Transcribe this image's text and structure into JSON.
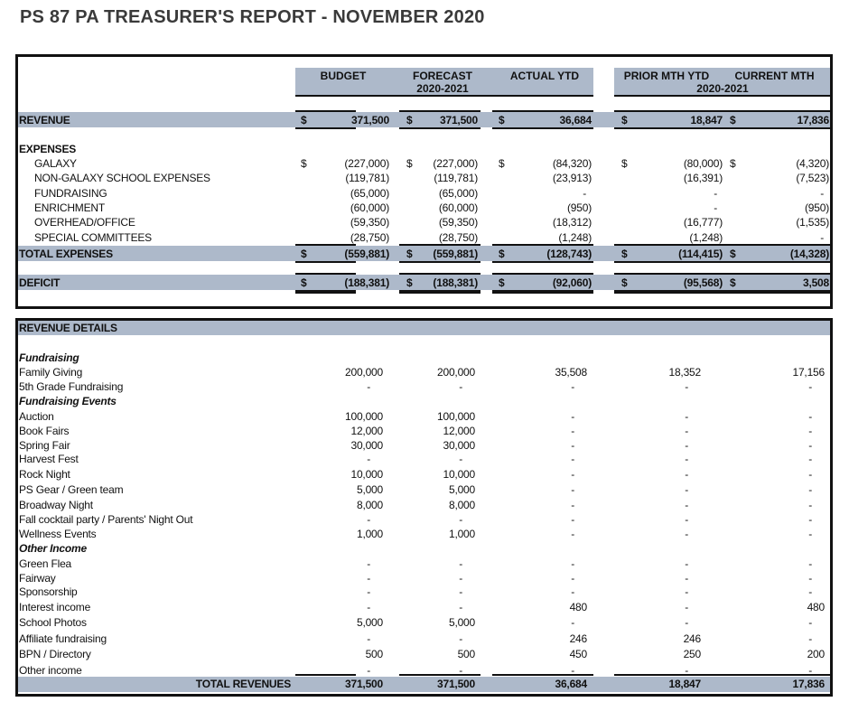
{
  "title": "PS 87 PA TREASURER'S REPORT - NOVEMBER 2020",
  "summary": {
    "headers": [
      {
        "line1": "BUDGET",
        "line2": ""
      },
      {
        "line1": "FORECAST",
        "line2": "2020-2021"
      },
      {
        "line1": "ACTUAL YTD",
        "line2": ""
      },
      {
        "line1": "PRIOR MTH YTD",
        "line2": ""
      },
      {
        "line1": "CURRENT MTH",
        "line2": ""
      }
    ],
    "right_group_subheader": "2020-2021",
    "currency": "$",
    "revenue": {
      "label": "REVENUE",
      "values": [
        "371,500",
        "371,500",
        "36,684",
        "18,847",
        "17,836"
      ]
    },
    "expenses_heading": "EXPENSES",
    "expenses": [
      {
        "label": "GALAXY",
        "values": [
          "(227,000)",
          "(227,000)",
          "(84,320)",
          "(80,000)",
          "(4,320)"
        ],
        "dollar": true
      },
      {
        "label": "NON-GALAXY SCHOOL EXPENSES",
        "values": [
          "(119,781)",
          "(119,781)",
          "(23,913)",
          "(16,391)",
          "(7,523)"
        ]
      },
      {
        "label": "FUNDRAISING",
        "values": [
          "(65,000)",
          "(65,000)",
          "-",
          "-",
          "-"
        ]
      },
      {
        "label": "ENRICHMENT",
        "values": [
          "(60,000)",
          "(60,000)",
          "(950)",
          "-",
          "(950)"
        ]
      },
      {
        "label": "OVERHEAD/OFFICE",
        "values": [
          "(59,350)",
          "(59,350)",
          "(18,312)",
          "(16,777)",
          "(1,535)"
        ]
      },
      {
        "label": "SPECIAL COMMITTEES",
        "values": [
          "(28,750)",
          "(28,750)",
          "(1,248)",
          "(1,248)",
          "-"
        ]
      }
    ],
    "total_expenses": {
      "label": "TOTAL EXPENSES",
      "values": [
        "(559,881)",
        "(559,881)",
        "(128,743)",
        "(114,415)",
        "(14,328)"
      ]
    },
    "deficit": {
      "label": "DEFICIT",
      "values": [
        "(188,381)",
        "(188,381)",
        "(92,060)",
        "(95,568)",
        "3,508"
      ]
    }
  },
  "details": {
    "heading": "REVENUE DETAILS",
    "rows": [
      {
        "label": "Fundraising",
        "section": true
      },
      {
        "label": "Family Giving",
        "values": [
          "200,000",
          "200,000",
          "35,508",
          "18,352",
          "17,156"
        ]
      },
      {
        "label": "5th Grade Fundraising",
        "values": [
          "-",
          "-",
          "-",
          "-",
          "-"
        ]
      },
      {
        "label": "Fundraising Events",
        "section": true
      },
      {
        "label": "Auction",
        "values": [
          "100,000",
          "100,000",
          "-",
          "-",
          "-"
        ]
      },
      {
        "label": "Book Fairs",
        "values": [
          "12,000",
          "12,000",
          "-",
          "-",
          "-"
        ]
      },
      {
        "label": "Spring Fair",
        "values": [
          "30,000",
          "30,000",
          "-",
          "-",
          "-"
        ]
      },
      {
        "label": "Harvest Fest",
        "values": [
          "-",
          "-",
          "-",
          "-",
          "-"
        ]
      },
      {
        "label": "Rock Night",
        "values": [
          "10,000",
          "10,000",
          "-",
          "-",
          "-"
        ]
      },
      {
        "label": "PS Gear / Green team",
        "values": [
          "5,000",
          "5,000",
          "-",
          "-",
          "-"
        ]
      },
      {
        "label": "Broadway Night",
        "values": [
          "8,000",
          "8,000",
          "-",
          "-",
          "-"
        ]
      },
      {
        "label": "Fall cocktail party / Parents' Night Out",
        "values": [
          "-",
          "-",
          "-",
          "-",
          "-"
        ]
      },
      {
        "label": "Wellness Events",
        "values": [
          "1,000",
          "1,000",
          "-",
          "-",
          "-"
        ]
      },
      {
        "label": "Other Income",
        "section": true
      },
      {
        "label": "Green Flea",
        "values": [
          "-",
          "-",
          "-",
          "-",
          "-"
        ]
      },
      {
        "label": "Fairway",
        "values": [
          "-",
          "-",
          "-",
          "-",
          "-"
        ]
      },
      {
        "label": "Sponsorship",
        "values": [
          "-",
          "-",
          "-",
          "-",
          "-"
        ]
      },
      {
        "label": "Interest income",
        "values": [
          "-",
          "-",
          "480",
          "-",
          "480"
        ]
      },
      {
        "label": "School Photos",
        "values": [
          "5,000",
          "5,000",
          "-",
          "-",
          "-"
        ]
      },
      {
        "label": "Affiliate fundraising",
        "values": [
          "-",
          "-",
          "246",
          "246",
          "-"
        ]
      },
      {
        "label": "BPN / Directory",
        "values": [
          "500",
          "500",
          "450",
          "250",
          "200"
        ]
      },
      {
        "label": "Other income",
        "values": [
          "-",
          "-",
          "-",
          "-",
          "-"
        ]
      }
    ],
    "total": {
      "label": "TOTAL REVENUES",
      "values": [
        "371,500",
        "371,500",
        "36,684",
        "18,847",
        "17,836"
      ]
    }
  },
  "colors": {
    "band": "#adb9ca",
    "title": "#3a3a3a"
  }
}
